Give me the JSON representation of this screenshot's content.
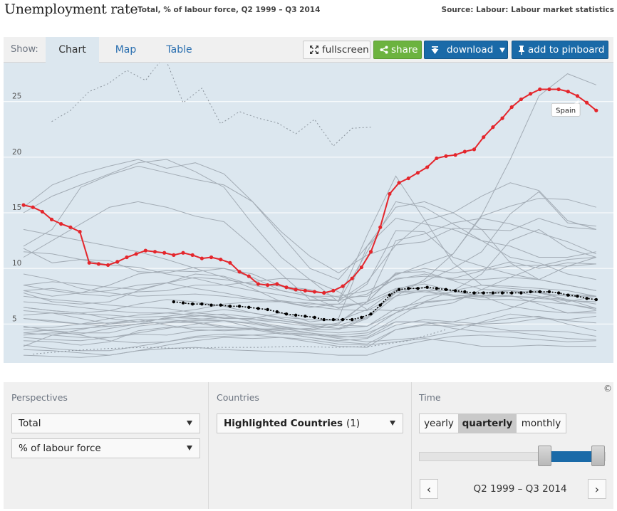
{
  "header": {
    "title": "Unemployment rate",
    "subtitle": "Total, % of labour force, Q2 1999 – Q3 2014",
    "source": "Source: Labour: Labour market statistics"
  },
  "toolbar": {
    "show_label": "Show:",
    "tabs": [
      {
        "label": "Chart",
        "active": true
      },
      {
        "label": "Map",
        "active": false
      },
      {
        "label": "Table",
        "active": false
      }
    ],
    "fullscreen_label": "fullscreen",
    "share_label": "share",
    "download_label": "download",
    "pinboard_label": "add to pinboard"
  },
  "colors": {
    "highlight": "#e4262c",
    "average": "#000000",
    "background_lines": "#a3acb5",
    "plot_bg": "#dce7ef"
  },
  "chart_data": {
    "type": "line",
    "title": "Unemployment rate",
    "ylim": [
      1.5,
      28.5
    ],
    "xlim": [
      1999.25,
      2014.75
    ],
    "yticks": [
      5,
      10,
      15,
      20,
      25
    ],
    "xticks": [
      2000,
      2002,
      2004,
      2006,
      2008,
      2010,
      2012,
      2014
    ],
    "grid": true,
    "annotation": "Spain",
    "highlighted": {
      "name": "Spain",
      "x": [
        1999.25,
        1999.5,
        1999.75,
        2000,
        2000.25,
        2000.5,
        2000.75,
        2001,
        2001.25,
        2001.5,
        2001.75,
        2002,
        2002.25,
        2002.5,
        2002.75,
        2003,
        2003.25,
        2003.5,
        2003.75,
        2004,
        2004.25,
        2004.5,
        2004.75,
        2005,
        2005.25,
        2005.5,
        2005.75,
        2006,
        2006.25,
        2006.5,
        2006.75,
        2007,
        2007.25,
        2007.5,
        2007.75,
        2008,
        2008.25,
        2008.5,
        2008.75,
        2009,
        2009.25,
        2009.5,
        2009.75,
        2010,
        2010.25,
        2010.5,
        2010.75,
        2011,
        2011.25,
        2011.5,
        2011.75,
        2012,
        2012.25,
        2012.5,
        2012.75,
        2013,
        2013.25,
        2013.5,
        2013.75,
        2014,
        2014.25,
        2014.5
      ],
      "values": [
        15.7,
        15.5,
        15.1,
        14.4,
        14.0,
        13.7,
        13.3,
        10.5,
        10.4,
        10.3,
        10.6,
        11.0,
        11.3,
        11.6,
        11.5,
        11.4,
        11.2,
        11.4,
        11.2,
        10.9,
        11.0,
        10.8,
        10.5,
        9.7,
        9.3,
        8.6,
        8.5,
        8.6,
        8.3,
        8.1,
        8.0,
        7.9,
        7.8,
        8.0,
        8.4,
        9.1,
        10.1,
        11.5,
        13.7,
        16.7,
        17.7,
        18.1,
        18.6,
        19.1,
        19.9,
        20.1,
        20.2,
        20.5,
        20.7,
        21.8,
        22.7,
        23.5,
        24.5,
        25.2,
        25.7,
        26.1,
        26.1,
        26.1,
        25.9,
        25.5,
        24.9,
        24.2
      ]
    },
    "average": {
      "x": [
        2003.25,
        2003.5,
        2003.75,
        2004,
        2004.25,
        2004.5,
        2004.75,
        2005,
        2005.25,
        2005.5,
        2005.75,
        2006,
        2006.25,
        2006.5,
        2006.75,
        2007,
        2007.25,
        2007.5,
        2007.75,
        2008,
        2008.25,
        2008.5,
        2008.75,
        2009,
        2009.25,
        2009.5,
        2009.75,
        2010,
        2010.25,
        2010.5,
        2010.75,
        2011,
        2011.25,
        2011.5,
        2011.75,
        2012,
        2012.25,
        2012.5,
        2012.75,
        2013,
        2013.25,
        2013.5,
        2013.75,
        2014,
        2014.25,
        2014.5
      ],
      "values": [
        7.0,
        6.9,
        6.8,
        6.8,
        6.7,
        6.7,
        6.6,
        6.6,
        6.5,
        6.4,
        6.3,
        6.1,
        5.9,
        5.8,
        5.7,
        5.6,
        5.4,
        5.4,
        5.4,
        5.4,
        5.6,
        5.9,
        6.7,
        7.6,
        8.1,
        8.2,
        8.2,
        8.3,
        8.2,
        8.1,
        8.0,
        7.9,
        7.8,
        7.8,
        7.8,
        7.8,
        7.8,
        7.8,
        7.9,
        7.9,
        7.9,
        7.8,
        7.6,
        7.5,
        7.3,
        7.2
      ]
    },
    "dotted": [
      {
        "x": [
          2000,
          2000.5,
          2001,
          2001.5,
          2002,
          2002.5,
          2003,
          2003.5,
          2004,
          2004.5,
          2005,
          2005.5,
          2006,
          2006.5,
          2007,
          2007.5,
          2008,
          2008.5
        ],
        "values": [
          23.2,
          24.2,
          25.9,
          26.6,
          27.8,
          26.9,
          29.1,
          24.9,
          26.2,
          23.0,
          24.1,
          23.5,
          23.1,
          22.1,
          23.4,
          21.0,
          22.6,
          22.7
        ]
      },
      {
        "x": [
          1999.5,
          2000.5,
          2001.5,
          2002.5,
          2003.5,
          2004.5,
          2005.5,
          2006.5,
          2007.5,
          2008.5,
          2009.5,
          2010.5
        ],
        "values": [
          2.3,
          2.6,
          2.8,
          2.9,
          2.8,
          2.9,
          2.9,
          3.0,
          2.9,
          3.0,
          3.5,
          4.5
        ]
      }
    ],
    "others": [
      [
        13.5,
        13.0,
        12.5,
        12.0,
        11.5,
        10.8,
        10.0,
        9.2,
        8.2,
        7.0,
        6.5,
        6.8,
        8.6,
        13.4,
        13.3,
        11.0,
        10.2,
        9.5,
        9.0,
        10.2,
        11.0
      ],
      [
        11.0,
        12.5,
        14.0,
        15.5,
        16.0,
        15.5,
        14.7,
        14.2,
        12.0,
        9.5,
        7.2,
        7.1,
        13.0,
        18.3,
        14.4,
        10.5,
        8.5,
        8.2,
        8.0,
        7.0,
        7.5
      ],
      [
        15.5,
        17.5,
        18.5,
        19.2,
        19.8,
        19.0,
        19.5,
        18.5,
        16.0,
        13.0,
        10.0,
        9.0,
        12.0,
        14.5,
        14.0,
        13.5,
        12.5,
        12.0,
        11.0,
        11.0,
        11.5
      ],
      [
        15.0,
        16.5,
        17.5,
        18.5,
        19.5,
        19.8,
        18.7,
        17.3,
        14.0,
        11.0,
        9.0,
        7.0,
        11.5,
        16.0,
        15.5,
        14.0,
        12.5,
        11.0,
        10.5,
        9.5,
        9.0
      ],
      [
        12.0,
        13.5,
        17.3,
        18.4,
        19.2,
        18.6,
        18.0,
        17.5,
        16.0,
        13.3,
        11.1,
        9.6,
        11.2,
        12.1,
        12.4,
        13.6,
        13.5,
        13.4,
        14.5,
        13.7,
        13.5
      ],
      [
        5.5,
        5.3,
        5.0,
        5.5,
        5.8,
        6.0,
        5.8,
        5.5,
        5.5,
        6.0,
        5.2,
        5.5,
        12.0,
        15.5,
        16.0,
        15.0,
        13.5,
        10.5,
        9.0,
        8.5,
        8.0
      ],
      [
        11.5,
        11.3,
        10.8,
        10.3,
        10.1,
        9.5,
        9.1,
        8.5,
        8.0,
        7.6,
        7.1,
        7.1,
        8.8,
        12.1,
        14.3,
        15.0,
        16.5,
        17.7,
        17.0,
        14.3,
        13.5
      ],
      [
        11.8,
        10.5,
        10.8,
        10.7,
        9.7,
        9.6,
        10.1,
        10.0,
        9.5,
        8.4,
        7.5,
        7.1,
        7.7,
        9.4,
        10.4,
        11.3,
        14.7,
        15.6,
        16.3,
        16.2,
        15.5
      ],
      [
        4.2,
        4.5,
        4.6,
        4.8,
        5.0,
        5.2,
        5.1,
        4.7,
        4.6,
        4.5,
        4.6,
        5.1,
        7.0,
        12.5,
        13.1,
        14.1,
        14.5,
        14.0,
        13.2,
        12.4,
        11.3
      ],
      [
        8.5,
        8.0,
        7.7,
        7.5,
        7.9,
        8.0,
        8.5,
        8.5,
        8.8,
        9.1,
        9.0,
        7.9,
        6.3,
        6.2,
        6.5,
        6.9,
        8.1,
        9.2,
        10.2,
        10.8,
        11.0
      ],
      [
        3.0,
        4.0,
        4.5,
        5.0,
        5.4,
        4.9,
        4.5,
        4.4,
        4.5,
        4.6,
        4.5,
        4.5,
        5.5,
        7.5,
        9.0,
        11.3,
        14.8,
        19.8,
        25.5,
        27.5,
        26.5
      ],
      [
        5.8,
        6.0,
        5.9,
        5.8,
        5.6,
        5.7,
        6.0,
        6.3,
        6.0,
        5.6,
        5.4,
        5.3,
        6.3,
        8.1,
        8.8,
        10.0,
        11.5,
        14.9,
        16.9,
        14.1,
        13.8
      ],
      [
        8.0,
        7.5,
        7.8,
        8.5,
        9.5,
        9.8,
        9.7,
        10.0,
        9.2,
        8.0,
        7.5,
        7.5,
        8.0,
        9.0,
        9.5,
        9.0,
        9.0,
        9.2,
        9.0,
        8.5,
        8.0
      ],
      [
        8.5,
        8.8,
        8.6,
        8.3,
        8.1,
        8.7,
        9.2,
        9.0,
        8.6,
        8.4,
        8.1,
        7.4,
        7.5,
        9.1,
        9.3,
        9.1,
        9.8,
        10.2,
        10.3,
        10.2,
        10.4
      ],
      [
        7.0,
        6.8,
        6.5,
        6.2,
        6.0,
        6.0,
        6.3,
        6.8,
        7.0,
        7.0,
        6.9,
        6.5,
        7.0,
        9.5,
        10.0,
        9.6,
        9.9,
        10.6,
        10.0,
        10.5,
        10.4
      ],
      [
        6.5,
        6.2,
        6.0,
        5.5,
        5.2,
        5.5,
        5.8,
        5.6,
        5.4,
        5.3,
        5.0,
        5.0,
        7.0,
        9.6,
        9.7,
        8.9,
        8.1,
        8.0,
        7.5,
        6.8,
        6.4
      ],
      [
        3.8,
        3.6,
        3.5,
        3.8,
        4.2,
        4.6,
        5.0,
        5.3,
        5.0,
        4.6,
        4.2,
        3.8,
        4.0,
        5.5,
        7.0,
        8.0,
        9.5,
        12.5,
        13.5,
        11.8,
        11.0
      ],
      [
        8.0,
        8.2,
        7.8,
        8.0,
        8.5,
        8.7,
        8.2,
        7.8,
        7.3,
        7.0,
        6.6,
        6.3,
        6.2,
        7.5,
        8.0,
        8.0,
        8.5,
        8.4,
        8.2,
        8.0,
        7.5
      ],
      [
        7.8,
        7.0,
        6.8,
        7.0,
        8.0,
        8.7,
        9.5,
        9.3,
        8.5,
        8.0,
        7.5,
        6.4,
        7.0,
        8.2,
        8.6,
        8.0,
        7.5,
        7.6,
        6.8,
        6.0,
        6.0
      ],
      [
        9.5,
        9.0,
        8.2,
        7.8,
        7.5,
        7.6,
        7.7,
        7.5,
        7.2,
        7.1,
        6.8,
        6.8,
        6.8,
        8.0,
        8.3,
        7.6,
        7.4,
        7.5,
        7.3,
        7.1,
        7.0
      ],
      [
        6.2,
        6.0,
        5.5,
        5.0,
        5.2,
        5.5,
        5.7,
        5.9,
        5.6,
        5.3,
        4.9,
        4.6,
        4.8,
        6.4,
        7.0,
        7.2,
        7.8,
        8.0,
        7.8,
        7.5,
        7.5
      ],
      [
        7.5,
        7.2,
        7.0,
        6.7,
        6.5,
        6.4,
        6.0,
        5.8,
        5.2,
        4.8,
        4.4,
        4.2,
        4.4,
        6.0,
        7.5,
        7.9,
        7.5,
        8.0,
        7.8,
        7.2,
        6.4
      ],
      [
        5.5,
        5.2,
        5.0,
        4.8,
        5.0,
        5.2,
        5.4,
        5.6,
        5.4,
        5.1,
        4.8,
        4.6,
        5.6,
        7.9,
        8.0,
        7.6,
        7.5,
        6.6,
        6.2,
        6.0,
        6.2
      ],
      [
        6.5,
        6.2,
        6.0,
        6.2,
        6.8,
        7.2,
        7.0,
        6.6,
        6.0,
        5.5,
        5.0,
        4.9,
        4.8,
        6.0,
        6.9,
        7.2,
        7.6,
        7.5,
        7.4,
        7.2,
        6.8
      ],
      [
        4.0,
        4.2,
        4.1,
        4.6,
        5.0,
        5.6,
        5.5,
        5.3,
        4.7,
        4.2,
        3.8,
        3.4,
        3.2,
        4.5,
        5.0,
        5.2,
        5.8,
        6.4,
        7.4,
        7.7,
        7.5
      ],
      [
        4.2,
        4.0,
        3.8,
        3.8,
        4.1,
        4.0,
        4.4,
        4.5,
        4.6,
        4.2,
        3.8,
        3.5,
        3.7,
        4.9,
        5.4,
        5.2,
        5.0,
        5.1,
        5.5,
        5.4,
        5.7
      ],
      [
        4.8,
        4.4,
        4.0,
        3.5,
        3.3,
        3.4,
        3.8,
        3.9,
        4.0,
        4.2,
        4.1,
        3.7,
        3.4,
        3.6,
        3.8,
        4.3,
        5.2,
        5.9,
        5.6,
        5.3,
        5.1
      ],
      [
        4.5,
        4.4,
        4.2,
        4.2,
        4.8,
        5.1,
        5.3,
        5.3,
        5.1,
        4.7,
        4.5,
        4.9,
        5.6,
        7.8,
        7.9,
        7.5,
        7.2,
        7.2,
        7.0,
        6.8,
        6.3
      ],
      [
        3.1,
        2.8,
        2.6,
        2.6,
        3.0,
        3.4,
        3.9,
        4.1,
        4.0,
        3.8,
        3.4,
        3.0,
        2.9,
        4.5,
        4.9,
        4.8,
        5.1,
        5.5,
        5.7,
        5.0,
        4.4
      ],
      [
        4.7,
        4.7,
        5.0,
        5.1,
        5.4,
        5.4,
        5.2,
        4.8,
        4.5,
        4.1,
        4.0,
        4.0,
        4.2,
        5.2,
        5.2,
        4.6,
        4.3,
        4.3,
        4.0,
        3.7,
        3.6
      ],
      [
        3.5,
        3.4,
        3.1,
        3.4,
        4.4,
        4.7,
        4.7,
        4.7,
        4.6,
        4.4,
        4.2,
        3.9,
        3.8,
        5.2,
        5.2,
        5.0,
        4.8,
        4.4,
        4.4,
        4.3,
        3.9
      ],
      [
        2.2,
        2.1,
        2.0,
        2.2,
        2.6,
        2.8,
        2.9,
        2.7,
        2.6,
        2.5,
        2.4,
        2.2,
        2.2,
        3.0,
        3.5,
        3.9,
        4.0,
        3.8,
        3.6,
        3.4,
        3.5
      ],
      [
        2.7,
        2.6,
        2.4,
        2.2,
        2.6,
        3.1,
        3.5,
        3.8,
        3.7,
        3.8,
        3.6,
        3.2,
        3.1,
        3.4,
        3.7,
        3.4,
        3.0,
        3.0,
        3.1,
        3.0,
        3.0
      ]
    ]
  },
  "controls": {
    "perspectives_label": "Perspectives",
    "perspective_1": "Total",
    "perspective_2": "% of labour force",
    "countries_label": "Countries",
    "countries_value": "Highlighted Countries",
    "countries_count": "(1)",
    "time_label": "Time",
    "time_modes": [
      {
        "label": "yearly",
        "active": false
      },
      {
        "label": "quarterly",
        "active": true
      },
      {
        "label": "monthly",
        "active": false
      }
    ],
    "range_label": "Q2 1999 – Q3 2014",
    "prev": "‹",
    "next": "›",
    "copyright": "©"
  }
}
